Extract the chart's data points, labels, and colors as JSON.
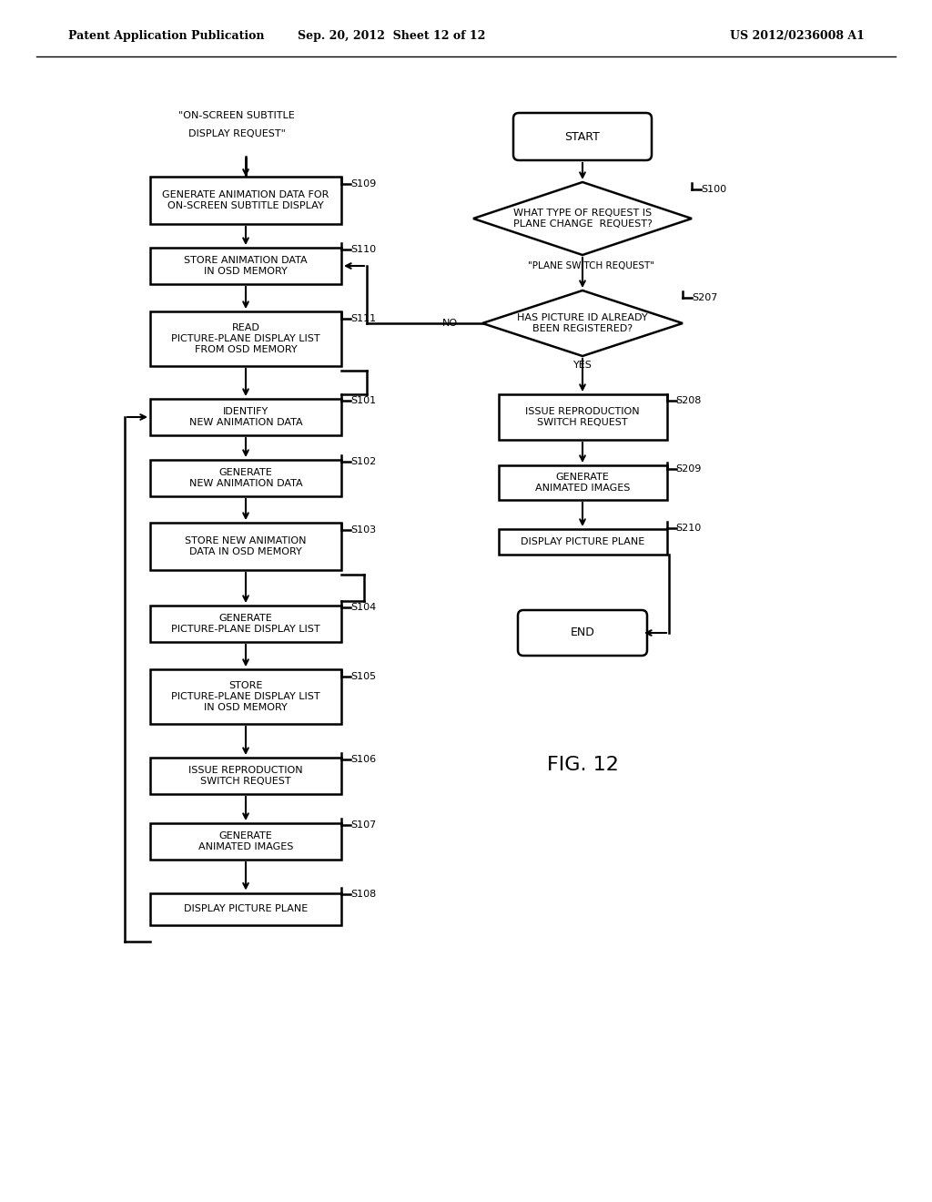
{
  "header_left": "Patent Application Publication",
  "header_center": "Sep. 20, 2012  Sheet 12 of 12",
  "header_right": "US 2012/0236008 A1",
  "fig_label": "FIG. 12",
  "background_color": "#ffffff"
}
